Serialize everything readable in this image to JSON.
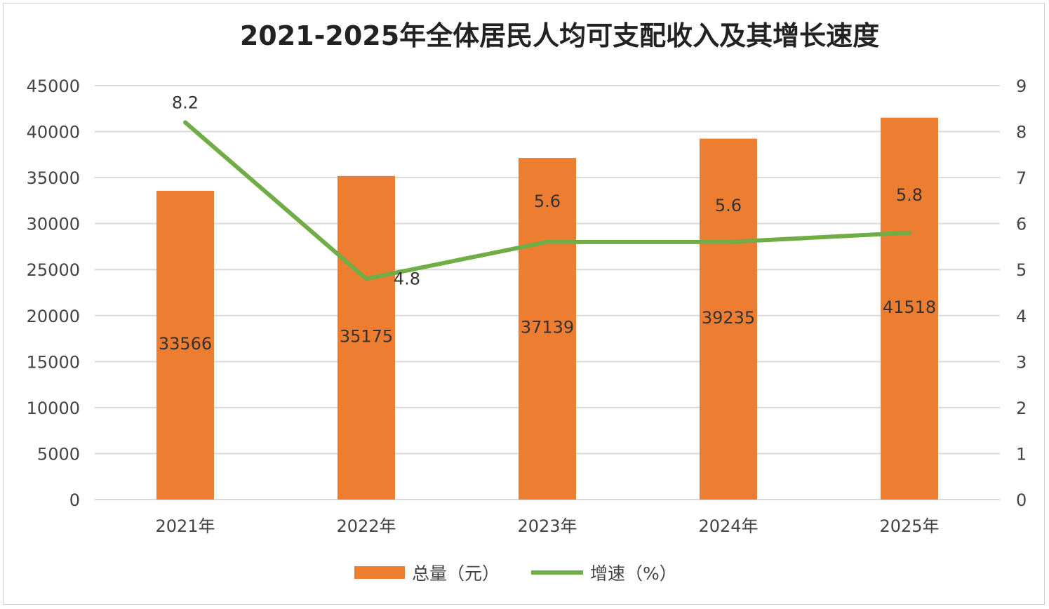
{
  "chart_data": {
    "type": "bar+line",
    "title": "2021-2025年全体居民人均可支配收入及其增长速度",
    "categories": [
      "2021年",
      "2022年",
      "2023年",
      "2024年",
      "2025年"
    ],
    "series": [
      {
        "name": "总量（元）",
        "type": "bar",
        "axis": "left",
        "color": "#ED7D31",
        "values": [
          33566,
          35175,
          37139,
          39235,
          41518
        ],
        "labels": [
          "33566",
          "35175",
          "37139",
          "39235",
          "41518"
        ]
      },
      {
        "name": "增速（%）",
        "type": "line",
        "axis": "right",
        "color": "#70AD47",
        "values": [
          8.2,
          4.8,
          5.6,
          5.6,
          5.8
        ],
        "labels": [
          "8.2",
          "4.8",
          "5.6",
          "5.6",
          "5.8"
        ]
      }
    ],
    "y_left": {
      "ylim": [
        0,
        45000
      ],
      "ticks": [
        "0",
        "5000",
        "10000",
        "15000",
        "20000",
        "25000",
        "30000",
        "35000",
        "40000",
        "45000"
      ]
    },
    "y_right": {
      "ylim": [
        0,
        9
      ],
      "ticks": [
        "0",
        "1",
        "2",
        "3",
        "4",
        "5",
        "6",
        "7",
        "8",
        "9"
      ]
    },
    "grid": true,
    "legend": "bottom-center"
  }
}
